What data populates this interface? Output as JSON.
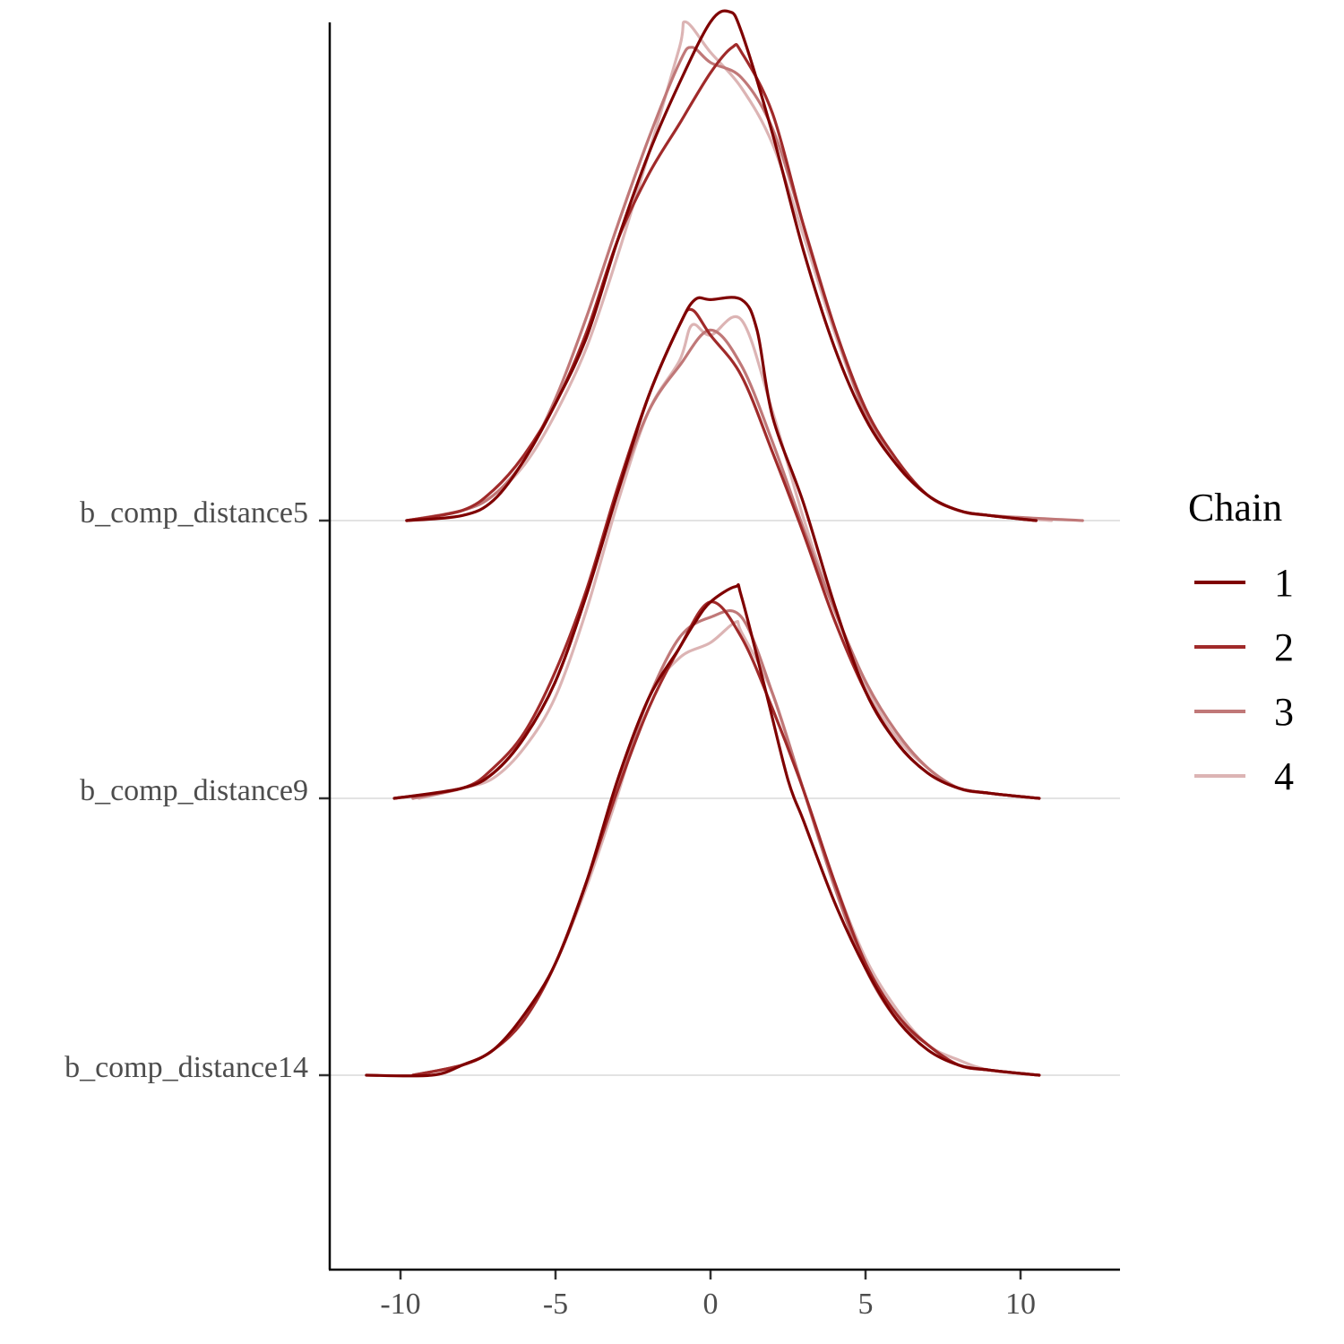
{
  "chart_data": {
    "type": "line",
    "subtype": "ridgeline-density",
    "x_ticks": [
      -10,
      -5,
      0,
      5,
      10
    ],
    "xlim": [
      -12.5,
      13
    ],
    "grid": "horizontal baselines only",
    "legend": {
      "title": "Chain",
      "placement": "right",
      "entries": [
        {
          "label": "1",
          "color": "#7f0000"
        },
        {
          "label": "2",
          "color": "#a02a2a"
        },
        {
          "label": "3",
          "color": "#c07878"
        },
        {
          "label": "4",
          "color": "#dcb4b4"
        }
      ]
    },
    "rows": [
      {
        "label": "b_comp_distance5",
        "chains": [
          {
            "chain": "1",
            "x": [
              -9.8,
              -8,
              -7,
              -6,
              -5,
              -4,
              -3,
              -2,
              -1,
              0,
              0.6,
              1,
              2,
              3,
              4,
              5,
              6,
              7,
              8,
              9,
              10.5
            ],
            "y": [
              0,
              0.01,
              0.04,
              0.12,
              0.23,
              0.36,
              0.55,
              0.72,
              0.86,
              0.98,
              1.0,
              0.96,
              0.76,
              0.53,
              0.34,
              0.2,
              0.11,
              0.05,
              0.02,
              0.01,
              0
            ]
          },
          {
            "chain": "2",
            "x": [
              -9.8,
              -8,
              -7,
              -6,
              -5,
              -4,
              -3,
              -2,
              -1,
              0,
              0.7,
              1,
              2,
              3,
              4,
              5,
              6,
              7,
              8,
              9,
              10.5
            ],
            "y": [
              0,
              0.02,
              0.06,
              0.13,
              0.23,
              0.37,
              0.55,
              0.68,
              0.78,
              0.88,
              0.93,
              0.92,
              0.8,
              0.58,
              0.38,
              0.22,
              0.12,
              0.05,
              0.02,
              0.01,
              0
            ]
          },
          {
            "chain": "3",
            "x": [
              -9.8,
              -8,
              -7,
              -6,
              -5,
              -4,
              -3,
              -2,
              -1,
              -0.6,
              0,
              1,
              2,
              3,
              4,
              5,
              6,
              7,
              8,
              9,
              12
            ],
            "y": [
              0,
              0.02,
              0.05,
              0.12,
              0.24,
              0.4,
              0.58,
              0.75,
              0.9,
              0.93,
              0.9,
              0.87,
              0.77,
              0.58,
              0.38,
              0.21,
              0.11,
              0.05,
              0.02,
              0.01,
              0
            ]
          },
          {
            "chain": "4",
            "x": [
              -9.8,
              -8,
              -7,
              -6,
              -5,
              -4,
              -3,
              -2,
              -1,
              -0.8,
              0,
              1,
              2,
              3,
              4,
              5,
              6,
              7,
              8,
              9,
              11
            ],
            "y": [
              0,
              0.02,
              0.05,
              0.11,
              0.21,
              0.34,
              0.52,
              0.72,
              0.93,
              0.98,
              0.92,
              0.85,
              0.74,
              0.56,
              0.37,
              0.21,
              0.11,
              0.05,
              0.02,
              0.01,
              0
            ]
          }
        ]
      },
      {
        "label": "b_comp_distance9",
        "chains": [
          {
            "chain": "1",
            "x": [
              -10.2,
              -8,
              -7,
              -6,
              -5,
              -4,
              -3,
              -2,
              -1,
              -0.5,
              0,
              1,
              1.5,
              2,
              3,
              4,
              5,
              6,
              7,
              8,
              9,
              10.6
            ],
            "y": [
              0,
              0.02,
              0.05,
              0.12,
              0.23,
              0.4,
              0.6,
              0.79,
              0.93,
              0.98,
              0.98,
              0.98,
              0.92,
              0.75,
              0.58,
              0.38,
              0.21,
              0.11,
              0.05,
              0.02,
              0.01,
              0
            ]
          },
          {
            "chain": "2",
            "x": [
              -10.2,
              -8,
              -7,
              -6,
              -5,
              -4,
              -3,
              -2,
              -1,
              -0.6,
              0,
              1,
              2,
              3,
              4,
              5,
              6,
              7,
              8,
              9,
              10.6
            ],
            "y": [
              0,
              0.02,
              0.06,
              0.13,
              0.25,
              0.41,
              0.61,
              0.79,
              0.93,
              0.96,
              0.91,
              0.83,
              0.68,
              0.52,
              0.35,
              0.21,
              0.11,
              0.05,
              0.02,
              0.01,
              0
            ]
          },
          {
            "chain": "3",
            "x": [
              -9.6,
              -8,
              -7,
              -6,
              -5,
              -4,
              -3,
              -2,
              -1,
              0,
              1,
              2,
              3,
              4,
              5,
              6,
              7,
              8,
              9,
              10.6
            ],
            "y": [
              0,
              0.02,
              0.05,
              0.12,
              0.23,
              0.4,
              0.6,
              0.76,
              0.85,
              0.92,
              0.85,
              0.7,
              0.53,
              0.37,
              0.23,
              0.13,
              0.06,
              0.02,
              0.01,
              0
            ]
          },
          {
            "chain": "4",
            "x": [
              -9.4,
              -8,
              -7,
              -6,
              -5,
              -4,
              -3,
              -2,
              -1,
              -0.6,
              0,
              1,
              2,
              3,
              4,
              5,
              6,
              7,
              8,
              9,
              10.6
            ],
            "y": [
              0,
              0.02,
              0.04,
              0.1,
              0.2,
              0.37,
              0.58,
              0.76,
              0.86,
              0.93,
              0.91,
              0.94,
              0.76,
              0.55,
              0.37,
              0.22,
              0.12,
              0.06,
              0.02,
              0.01,
              0
            ]
          }
        ]
      },
      {
        "label": "b_comp_distance14",
        "chains": [
          {
            "chain": "1",
            "x": [
              -11.1,
              -9,
              -8,
              -7,
              -6,
              -5,
              -4,
              -3,
              -2,
              -1,
              -0.5,
              0,
              0.8,
              1,
              1.8,
              2.5,
              3,
              4,
              5,
              6,
              7,
              8,
              9,
              10.6
            ],
            "y": [
              0,
              0,
              0.02,
              0.05,
              0.12,
              0.22,
              0.38,
              0.58,
              0.74,
              0.84,
              0.89,
              0.93,
              0.96,
              0.94,
              0.75,
              0.58,
              0.5,
              0.34,
              0.21,
              0.11,
              0.05,
              0.02,
              0.01,
              0
            ]
          },
          {
            "chain": "2",
            "x": [
              -9.6,
              -8,
              -7,
              -6,
              -5,
              -4,
              -3,
              -2,
              -1,
              0,
              1,
              2,
              3,
              4,
              5,
              6,
              7,
              8,
              9,
              10.6
            ],
            "y": [
              0,
              0.02,
              0.05,
              0.11,
              0.22,
              0.38,
              0.56,
              0.72,
              0.84,
              0.93,
              0.86,
              0.72,
              0.56,
              0.38,
              0.22,
              0.12,
              0.06,
              0.02,
              0.01,
              0
            ]
          },
          {
            "chain": "3",
            "x": [
              -9.6,
              -8,
              -7,
              -6,
              -5,
              -4,
              -3,
              -2,
              -1,
              0,
              1,
              2,
              3,
              4,
              5,
              6,
              7,
              8,
              9,
              10.6
            ],
            "y": [
              0,
              0.02,
              0.05,
              0.11,
              0.22,
              0.38,
              0.57,
              0.74,
              0.86,
              0.9,
              0.9,
              0.75,
              0.56,
              0.37,
              0.21,
              0.11,
              0.06,
              0.02,
              0.01,
              0
            ]
          },
          {
            "chain": "4",
            "x": [
              -9.6,
              -8,
              -7,
              -6,
              -5,
              -4,
              -3,
              -2,
              -1,
              0,
              0.8,
              1,
              2,
              3,
              4,
              5,
              6,
              7,
              8,
              9,
              10.6
            ],
            "y": [
              0,
              0.02,
              0.05,
              0.11,
              0.22,
              0.37,
              0.55,
              0.74,
              0.82,
              0.85,
              0.89,
              0.87,
              0.75,
              0.56,
              0.38,
              0.23,
              0.13,
              0.06,
              0.03,
              0.01,
              0
            ]
          }
        ]
      }
    ]
  }
}
